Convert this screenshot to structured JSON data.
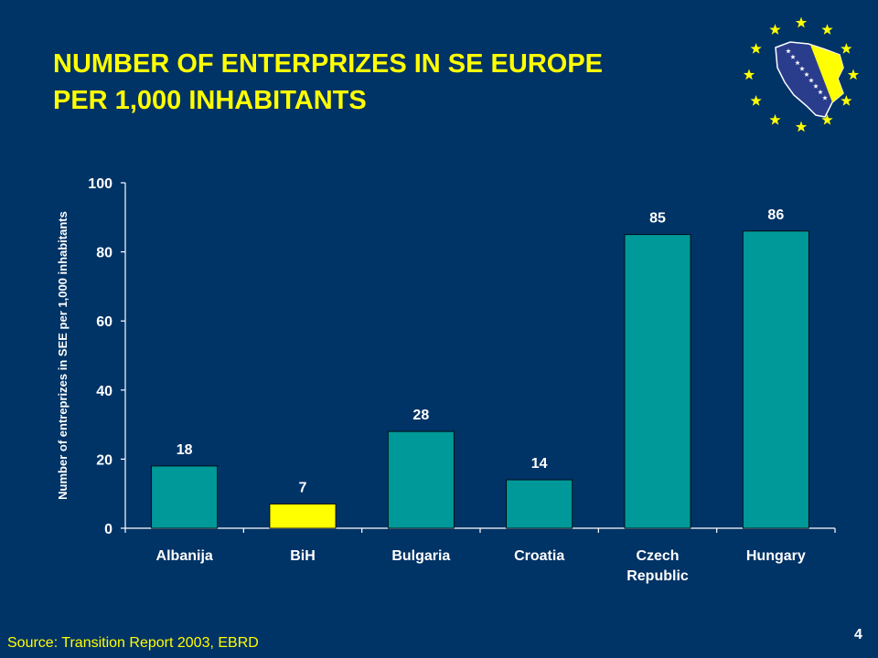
{
  "slide": {
    "title_lines": [
      "NUMBER OF ENTERPRIZES IN SE EUROPE",
      "PER 1,000 INHABITANTS"
    ],
    "source": "Source: Transition Report 2003, EBRD",
    "page_number": "4",
    "logo": {
      "icon": "eu-bosnia-flag-emblem",
      "star_color": "#ffff00",
      "map_color": "#2a3c8c"
    }
  },
  "colors": {
    "background": "#003366",
    "title": "#ffff00",
    "bar": "#009999",
    "highlight_bar": "#ffff00",
    "axis_text": "#ffffff",
    "data_labels": "#ffffff"
  },
  "chart_data": {
    "type": "bar",
    "categories": [
      [
        "Albanija"
      ],
      [
        "BiH"
      ],
      [
        "Bulgaria"
      ],
      [
        "Croatia"
      ],
      [
        "Czech",
        "Republic"
      ],
      [
        "Hungary"
      ]
    ],
    "values": [
      18,
      7,
      28,
      14,
      85,
      86
    ],
    "data_labels": [
      "18",
      "7",
      "28",
      "14",
      "85",
      "86"
    ],
    "highlight_index": 1,
    "ylabel": "Number of entreprizes in SEE per 1,000 inhabitants",
    "ylim": [
      0,
      100
    ],
    "yticks": [
      0,
      20,
      40,
      60,
      80,
      100
    ],
    "grid": false,
    "legend": "none"
  }
}
